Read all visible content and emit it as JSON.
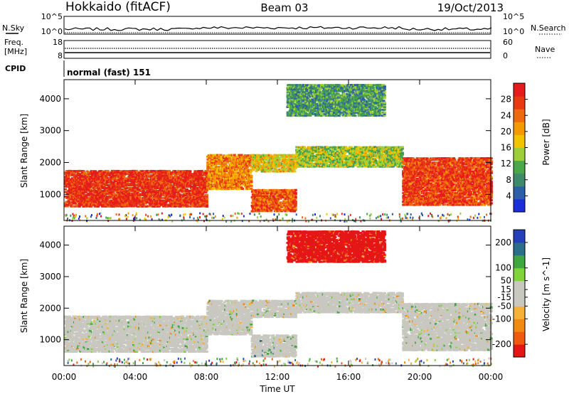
{
  "header": {
    "station": "Hokkaido (fitACF)",
    "beam": "Beam 03",
    "date": "19/Oct/2013"
  },
  "noise_panel": {
    "left_label": "N.Sky",
    "right_label": "N.Search",
    "top_tick": "10^5",
    "bottom_tick": "10^0"
  },
  "freq_panel": {
    "left_label_1": "Freq.",
    "left_label_2": "[MHz]",
    "left_ticks": [
      "18",
      "8"
    ],
    "right_label": "Nave",
    "right_ticks": [
      "60",
      "0"
    ]
  },
  "cpid_panel": {
    "label": "CPID",
    "text": "normal (fast) 151"
  },
  "colors": {
    "power_scale": [
      "#1a2fd8",
      "#2d5fa8",
      "#3f8a6a",
      "#4aa84a",
      "#9ccf3a",
      "#f2c400",
      "#f39a00",
      "#ee6a10",
      "#e83a12",
      "#e61c1c"
    ],
    "velocity_scale": [
      "#e51616",
      "#ee5a10",
      "#f08a12",
      "#f6b13a",
      "#c8c8c0",
      "#c8c8c0",
      "#7ed43a",
      "#3fa640",
      "#2d6e8a",
      "#2540b8"
    ]
  },
  "chart_data": [
    {
      "type": "heatmap",
      "name": "power",
      "ylabel": "Slant Range [km]",
      "yticks": [
        "1000",
        "2000",
        "3000",
        "4000"
      ],
      "ylim": [
        180,
        4600
      ],
      "xlim_hours": [
        0,
        24
      ],
      "colorbar_label": "Power [dB]",
      "colorbar_ticks": [
        "4",
        "8",
        "12",
        "16",
        "20",
        "24",
        "28"
      ],
      "colorbar_range": [
        0,
        32
      ],
      "regions": [
        {
          "t0": 0,
          "t1": 8,
          "r0": 650,
          "r1": 1800,
          "level": 0.9
        },
        {
          "t0": 8,
          "t1": 10.5,
          "r0": 1200,
          "r1": 2300,
          "level": 0.7
        },
        {
          "t0": 10.5,
          "t1": 13,
          "r0": 1750,
          "r1": 2300,
          "level": 0.55
        },
        {
          "t0": 10.5,
          "t1": 13,
          "r0": 500,
          "r1": 1200,
          "level": 0.8
        },
        {
          "t0": 13,
          "t1": 19,
          "r0": 1900,
          "r1": 2550,
          "level": 0.45
        },
        {
          "t0": 19,
          "t1": 24,
          "r0": 700,
          "r1": 2200,
          "level": 0.85
        },
        {
          "t0": 12.5,
          "t1": 18,
          "r0": 3500,
          "r1": 4500,
          "level": 0.3
        }
      ]
    },
    {
      "type": "heatmap",
      "name": "velocity",
      "ylabel": "Slant Range [km]",
      "yticks": [
        "1000",
        "2000",
        "3000",
        "4000"
      ],
      "ylim": [
        180,
        4600
      ],
      "xlim_hours": [
        0,
        24
      ],
      "colorbar_label": "Velocity [m s^-1]",
      "colorbar_ticks": [
        "-200",
        "-100",
        "-50",
        "-15",
        "15",
        "50",
        "100",
        "200"
      ],
      "colorbar_range": [
        -250,
        250
      ],
      "regions": [
        {
          "t0": 0,
          "t1": 8,
          "r0": 650,
          "r1": 1800,
          "level": 0.5
        },
        {
          "t0": 8,
          "t1": 10.5,
          "r0": 1200,
          "r1": 2300,
          "level": 0.5
        },
        {
          "t0": 10.5,
          "t1": 13,
          "r0": 1750,
          "r1": 2300,
          "level": 0.5
        },
        {
          "t0": 10.5,
          "t1": 13,
          "r0": 500,
          "r1": 1200,
          "level": 0.55
        },
        {
          "t0": 13,
          "t1": 19,
          "r0": 1900,
          "r1": 2550,
          "level": 0.5
        },
        {
          "t0": 19,
          "t1": 24,
          "r0": 700,
          "r1": 2200,
          "level": 0.5
        },
        {
          "t0": 12.5,
          "t1": 18,
          "r0": 3500,
          "r1": 4500,
          "level": 0.05
        }
      ]
    }
  ],
  "xaxis": {
    "ticks": [
      "00:00",
      "04:00",
      "08:00",
      "12:00",
      "16:00",
      "20:00",
      "00:00"
    ],
    "label": "Time UT"
  }
}
